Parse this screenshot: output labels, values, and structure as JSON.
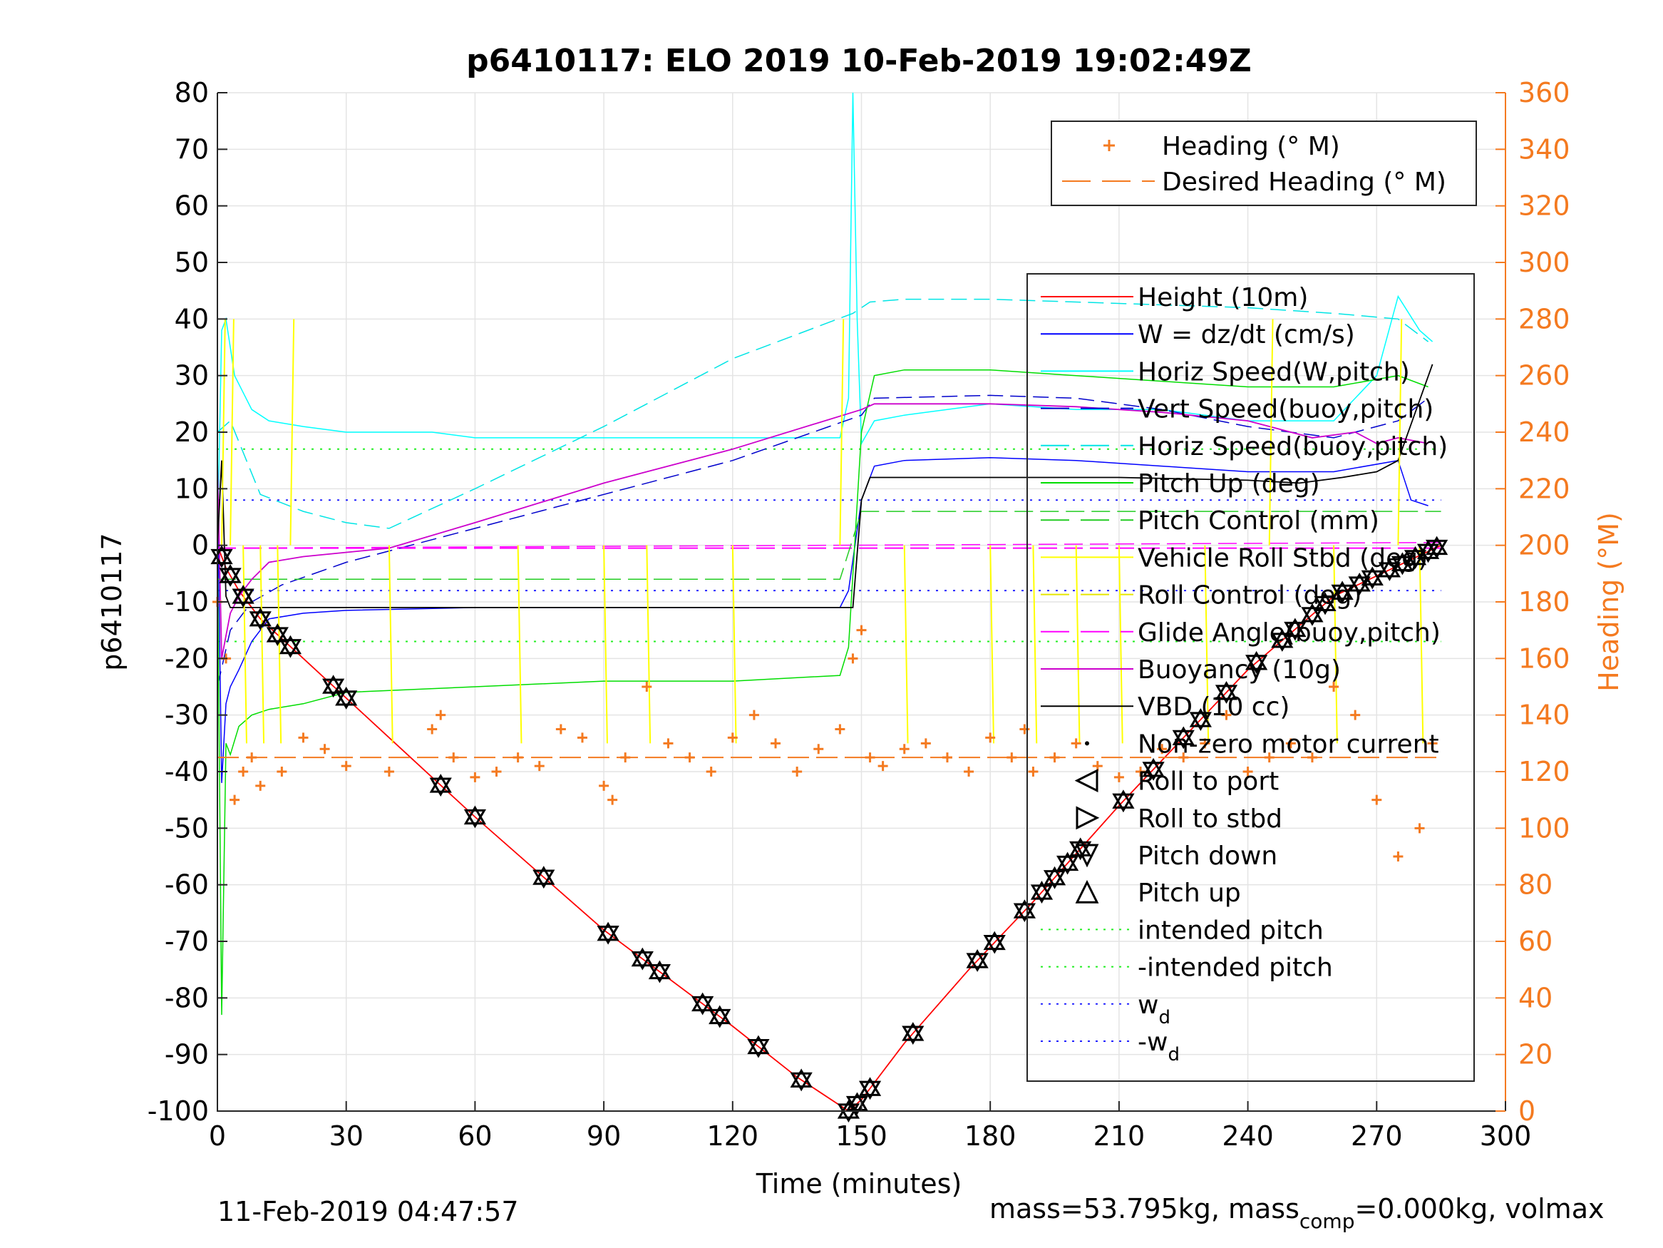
{
  "title": "p6410117: ELO 2019 10-Feb-2019 19:02:49Z",
  "footer": {
    "timestamp": "11-Feb-2019 04:47:57",
    "mass_pre": "mass=53.795kg, mass",
    "mass_sub": "comp",
    "mass_post": "=0.000kg, volmax"
  },
  "colors": {
    "height": "#ff0000",
    "w": "#0000ff",
    "horiz_w": "#00ffff",
    "vert_buoy": "#0000cc",
    "horiz_buoy": "#00e5e5",
    "pitch": "#00dd00",
    "pitch_ctrl": "#22cc22",
    "roll": "#ffff00",
    "roll_ctrl": "#e6e600",
    "glide": "#ff00ff",
    "buoyancy": "#cc00cc",
    "vbd": "#000000",
    "heading": "#f47a20",
    "intended": "#22ee22",
    "wd": "#2222ff"
  },
  "chart_data": {
    "type": "line",
    "xlabel": "Time (minutes)",
    "ylabel": "p6410117",
    "y2label": "Heading (°M)",
    "xlim": [
      0,
      300
    ],
    "ylim": [
      -100,
      80
    ],
    "y2lim": [
      0,
      360
    ],
    "xticks": [
      0,
      30,
      60,
      90,
      120,
      150,
      180,
      210,
      240,
      270,
      300
    ],
    "yticks": [
      -100,
      -90,
      -80,
      -70,
      -60,
      -50,
      -40,
      -30,
      -20,
      -10,
      0,
      10,
      20,
      30,
      40,
      50,
      60,
      70,
      80
    ],
    "y2ticks": [
      0,
      20,
      40,
      60,
      80,
      100,
      120,
      140,
      160,
      180,
      200,
      220,
      240,
      260,
      280,
      300,
      320,
      340,
      360
    ],
    "grid": true,
    "legend_top": [
      {
        "label": "Heading (° M)",
        "style": "plus",
        "color": "#f47a20"
      },
      {
        "label": "Desired Heading (° M)",
        "style": "dash",
        "color": "#f47a20"
      }
    ],
    "legend_main": [
      {
        "label": "Height (10m)",
        "style": "solid",
        "color": "#ff0000"
      },
      {
        "label": "W = dz/dt (cm/s)",
        "style": "solid",
        "color": "#0000ff"
      },
      {
        "label": "Horiz Speed(W,pitch)",
        "style": "solid",
        "color": "#00ffff"
      },
      {
        "label": "Vert Speed(buoy,pitch)",
        "style": "dash",
        "color": "#0000cc"
      },
      {
        "label": "Horiz Speed(buoy,pitch)",
        "style": "dash",
        "color": "#00e5e5"
      },
      {
        "label": "Pitch Up (deg)",
        "style": "solid",
        "color": "#00dd00"
      },
      {
        "label": "Pitch Control (mm)",
        "style": "dash",
        "color": "#22cc22"
      },
      {
        "label": "Vehicle Roll Stbd (deg)",
        "style": "solid",
        "color": "#ffff00"
      },
      {
        "label": "Roll Control (deg)",
        "style": "dash",
        "color": "#e6e600"
      },
      {
        "label": "Glide Angle(buoy,pitch)",
        "style": "dash",
        "color": "#ff00ff"
      },
      {
        "label": "Buoyancy (10g)",
        "style": "solid",
        "color": "#cc00cc"
      },
      {
        "label": "VBD (10 cc)",
        "style": "solid",
        "color": "#000000"
      },
      {
        "label": "Non-zero motor current",
        "style": "dot",
        "color": "#000000"
      },
      {
        "label": "Roll to port",
        "style": "tri-left",
        "color": "#000000"
      },
      {
        "label": "Roll to stbd",
        "style": "tri-right",
        "color": "#000000"
      },
      {
        "label": "Pitch down",
        "style": "tri-down",
        "color": "#000000"
      },
      {
        "label": "Pitch up",
        "style": "tri-up",
        "color": "#000000"
      },
      {
        "label": "intended pitch",
        "style": "dotted",
        "color": "#22ee22"
      },
      {
        "label": "-intended pitch",
        "style": "dotted",
        "color": "#22ee22"
      },
      {
        "label": "w",
        "sub": "d",
        "style": "dotted",
        "color": "#2222ff"
      },
      {
        "label": "-w",
        "sub": "d",
        "style": "dotted",
        "color": "#2222ff"
      }
    ],
    "reference_lines": [
      {
        "name": "intended pitch",
        "y": 17,
        "color": "#22ee22"
      },
      {
        "name": "-intended pitch",
        "y": -17,
        "color": "#22ee22"
      },
      {
        "name": "w_d",
        "y": 8,
        "color": "#2222ff"
      },
      {
        "name": "-w_d",
        "y": -8,
        "color": "#2222ff"
      },
      {
        "name": "glide zero",
        "y": -0.5,
        "color": "#ff00ff",
        "dash": true
      }
    ],
    "series": [
      {
        "key": "height",
        "color": "#ff0000",
        "width": 1.5,
        "x": [
          0,
          2,
          5,
          10,
          20,
          30,
          60,
          90,
          120,
          135,
          147,
          150,
          160,
          175,
          190,
          210,
          240,
          260,
          285
        ],
        "y": [
          0,
          -4,
          -8,
          -13,
          -20,
          -27,
          -48,
          -68,
          -85,
          -94,
          -100,
          -98,
          -88,
          -75,
          -63,
          -46,
          -22,
          -9,
          0
        ]
      },
      {
        "key": "w",
        "color": "#0000ff",
        "width": 1.2,
        "x": [
          0,
          1,
          2,
          3,
          5,
          8,
          12,
          20,
          30,
          60,
          90,
          120,
          145,
          147,
          150,
          153,
          160,
          180,
          200,
          220,
          240,
          260,
          275,
          278,
          282
        ],
        "y": [
          10,
          -42,
          -28,
          -25,
          -22,
          -17,
          -13,
          -12,
          -11.5,
          -11,
          -11,
          -11,
          -11,
          -8,
          8,
          14,
          15,
          15.5,
          15,
          14,
          13,
          13,
          15,
          8,
          7
        ]
      },
      {
        "key": "horiz_w",
        "color": "#00ffff",
        "width": 1.2,
        "x": [
          0,
          1,
          2,
          4,
          8,
          12,
          20,
          30,
          50,
          60,
          90,
          120,
          145,
          147,
          148,
          149,
          150,
          153,
          160,
          180,
          200,
          220,
          240,
          260,
          270,
          275,
          280,
          283
        ],
        "y": [
          0,
          38,
          40,
          30,
          24,
          22,
          21,
          20,
          20,
          19,
          19,
          19,
          19,
          26,
          80,
          40,
          18,
          22,
          23,
          25,
          24,
          24,
          22,
          22,
          30,
          44,
          38,
          36
        ]
      },
      {
        "key": "vert_buoy",
        "color": "#0000cc",
        "width": 1.2,
        "dash": "22,10",
        "x": [
          0,
          3,
          8,
          15,
          30,
          40,
          60,
          90,
          120,
          150,
          153,
          180,
          200,
          220,
          240,
          260,
          275,
          282
        ],
        "y": [
          -25,
          -15,
          -10,
          -7,
          -3,
          -1,
          3,
          9,
          15,
          23,
          26,
          26.5,
          26,
          24,
          21,
          19,
          22,
          26
        ]
      },
      {
        "key": "horiz_buoy",
        "color": "#00e5e5",
        "width": 1.2,
        "dash": "22,10",
        "x": [
          0,
          3,
          10,
          20,
          30,
          40,
          60,
          90,
          120,
          148,
          152,
          160,
          180,
          200,
          220,
          240,
          260,
          275,
          282
        ],
        "y": [
          20,
          22,
          9,
          6,
          4,
          3,
          10,
          21,
          33,
          41,
          43,
          43.5,
          43.5,
          43,
          42.5,
          42,
          41,
          40,
          36
        ]
      },
      {
        "key": "pitch",
        "color": "#00dd00",
        "width": 1.2,
        "x": [
          0,
          1,
          2,
          3,
          5,
          8,
          12,
          20,
          30,
          60,
          90,
          120,
          145,
          147,
          150,
          153,
          160,
          180,
          200,
          220,
          240,
          260,
          275,
          282
        ],
        "y": [
          0,
          -83,
          -35,
          -37,
          -32,
          -30,
          -29,
          -28,
          -26,
          -25,
          -24,
          -24,
          -23,
          -18,
          20,
          30,
          31,
          31,
          30,
          29,
          28,
          28,
          30,
          28
        ]
      },
      {
        "key": "pitch_ctrl",
        "color": "#22cc22",
        "width": 1.2,
        "dash": "26,10",
        "x": [
          0,
          145,
          150,
          285
        ],
        "y": [
          -6,
          -6,
          6,
          6
        ]
      },
      {
        "key": "glide",
        "color": "#ff00ff",
        "width": 1.2,
        "dash": "26,10",
        "x": [
          0,
          285
        ],
        "y": [
          -0.5,
          0.5
        ]
      },
      {
        "key": "buoyancy",
        "color": "#cc00cc",
        "width": 1.5,
        "x": [
          0,
          1,
          2,
          3,
          5,
          8,
          12,
          20,
          40,
          60,
          90,
          120,
          150,
          153,
          180,
          200,
          220,
          240,
          255,
          265,
          270,
          275,
          282
        ],
        "y": [
          15,
          -20,
          -16,
          -12,
          -9,
          -6,
          -3,
          -2,
          -0.5,
          4,
          11,
          17,
          24,
          25,
          25,
          24.5,
          23.5,
          22,
          19,
          20,
          18,
          19,
          18
        ]
      },
      {
        "key": "vbd",
        "color": "#000000",
        "width": 1.5,
        "x": [
          0,
          1,
          2,
          3,
          30,
          148,
          150,
          152,
          210,
          240,
          252,
          262,
          270,
          275,
          283
        ],
        "y": [
          0,
          15,
          -9,
          -11,
          -11,
          -11,
          8,
          12,
          12,
          11.5,
          11,
          12,
          13,
          15,
          32
        ]
      }
    ],
    "heading": {
      "color": "#f47a20",
      "desired": 125,
      "samples_x": [
        0,
        2,
        4,
        6,
        8,
        10,
        15,
        20,
        25,
        30,
        40,
        50,
        52,
        55,
        60,
        65,
        70,
        75,
        80,
        85,
        90,
        92,
        95,
        100,
        105,
        110,
        115,
        120,
        125,
        130,
        135,
        140,
        145,
        148,
        150,
        152,
        155,
        160,
        165,
        170,
        175,
        180,
        185,
        188,
        190,
        195,
        200,
        205,
        210,
        215,
        220,
        225,
        230,
        235,
        240,
        245,
        250,
        255,
        260,
        265,
        270,
        275,
        280,
        283
      ],
      "samples_y": [
        180,
        160,
        110,
        120,
        125,
        115,
        120,
        132,
        128,
        122,
        120,
        135,
        140,
        125,
        118,
        120,
        125,
        122,
        135,
        132,
        115,
        110,
        125,
        150,
        130,
        125,
        120,
        132,
        140,
        130,
        120,
        128,
        135,
        160,
        170,
        125,
        122,
        128,
        130,
        125,
        120,
        132,
        125,
        135,
        120,
        125,
        130,
        122,
        118,
        120,
        128,
        125,
        130,
        140,
        120,
        125,
        130,
        125,
        150,
        140,
        110,
        90,
        100,
        130
      ]
    },
    "markers": {
      "pairs_x": [
        1,
        3,
        6,
        10,
        14,
        17,
        27,
        30,
        52,
        60,
        76,
        91,
        99,
        103,
        113,
        117,
        126,
        136,
        147,
        149,
        152,
        162,
        177,
        181,
        188,
        192,
        195,
        198,
        201,
        211,
        218,
        225,
        229,
        235,
        242,
        248,
        251,
        255,
        258,
        262,
        266,
        269,
        273,
        276,
        279,
        282,
        284
      ]
    }
  }
}
